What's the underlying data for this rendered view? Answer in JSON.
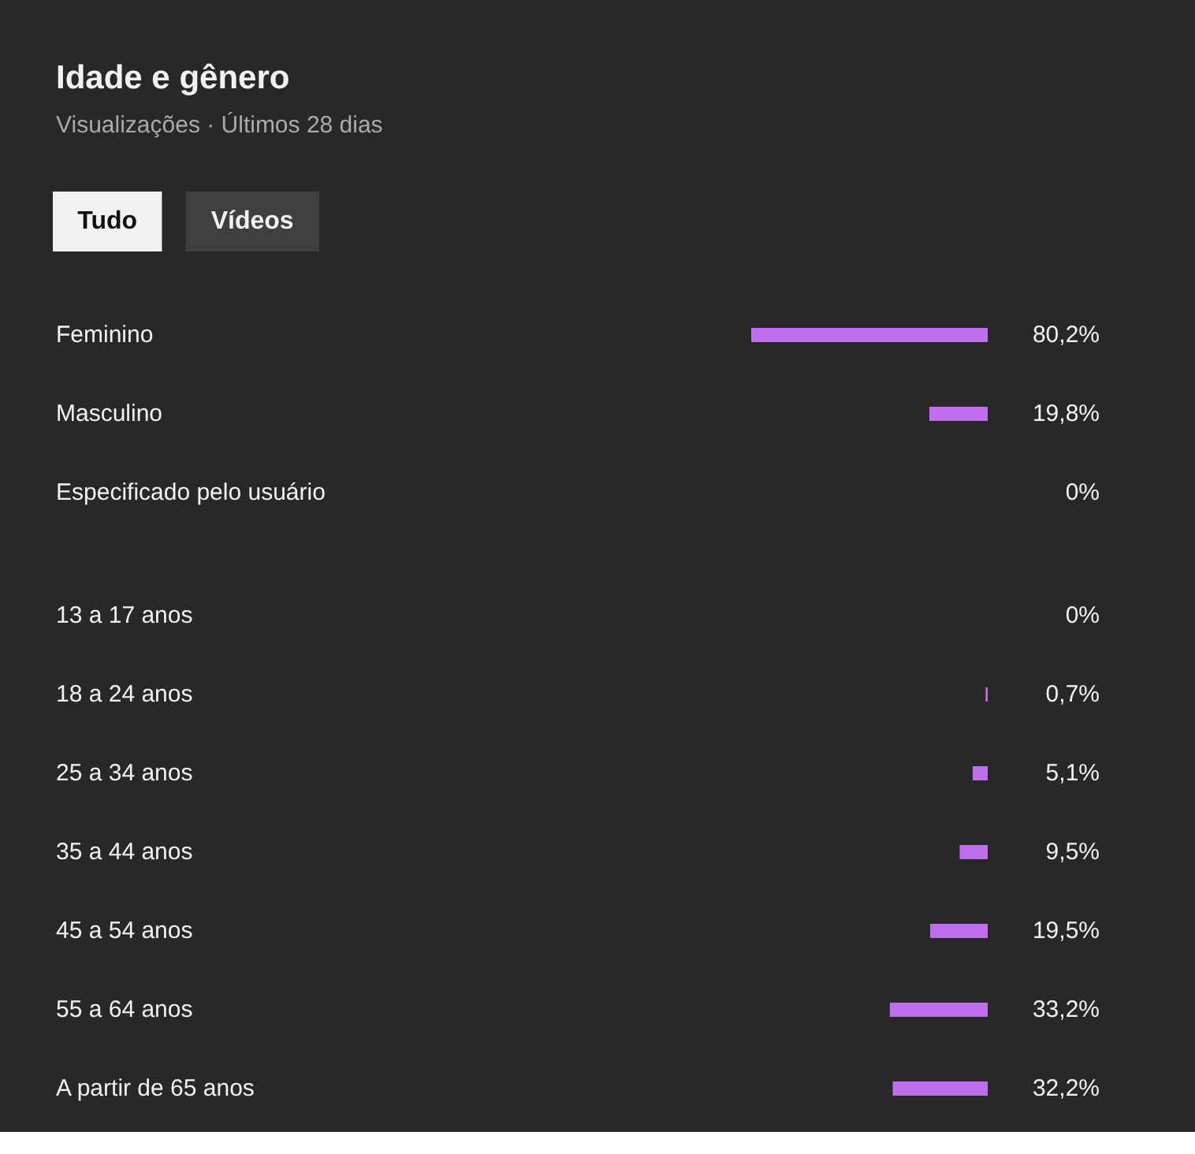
{
  "chart_data": [
    {
      "type": "bar",
      "orientation": "horizontal",
      "title": "Idade e gênero",
      "subtitle": "Visualizações · Últimos 28 dias",
      "annotations": [
        "Tudo",
        "Vídeos"
      ],
      "color": "#bf6ef0",
      "categories": [
        "Feminino",
        "Masculino",
        "Especificado pelo usuário"
      ],
      "values": [
        80.2,
        19.8,
        0
      ],
      "value_labels": [
        "80,2%",
        "19,8%",
        "0%"
      ]
    },
    {
      "type": "bar",
      "orientation": "horizontal",
      "color": "#bf6ef0",
      "categories": [
        "13 a 17 anos",
        "18 a 24 anos",
        "25 a 34 anos",
        "35 a 44 anos",
        "45 a 54 anos",
        "55 a 64 anos",
        "A partir de 65 anos"
      ],
      "values": [
        0,
        0.7,
        5.1,
        9.5,
        19.5,
        33.2,
        32.2
      ],
      "value_labels": [
        "0%",
        "0,7%",
        "5,1%",
        "9,5%",
        "19,5%",
        "33,2%",
        "32,2%"
      ]
    }
  ]
}
